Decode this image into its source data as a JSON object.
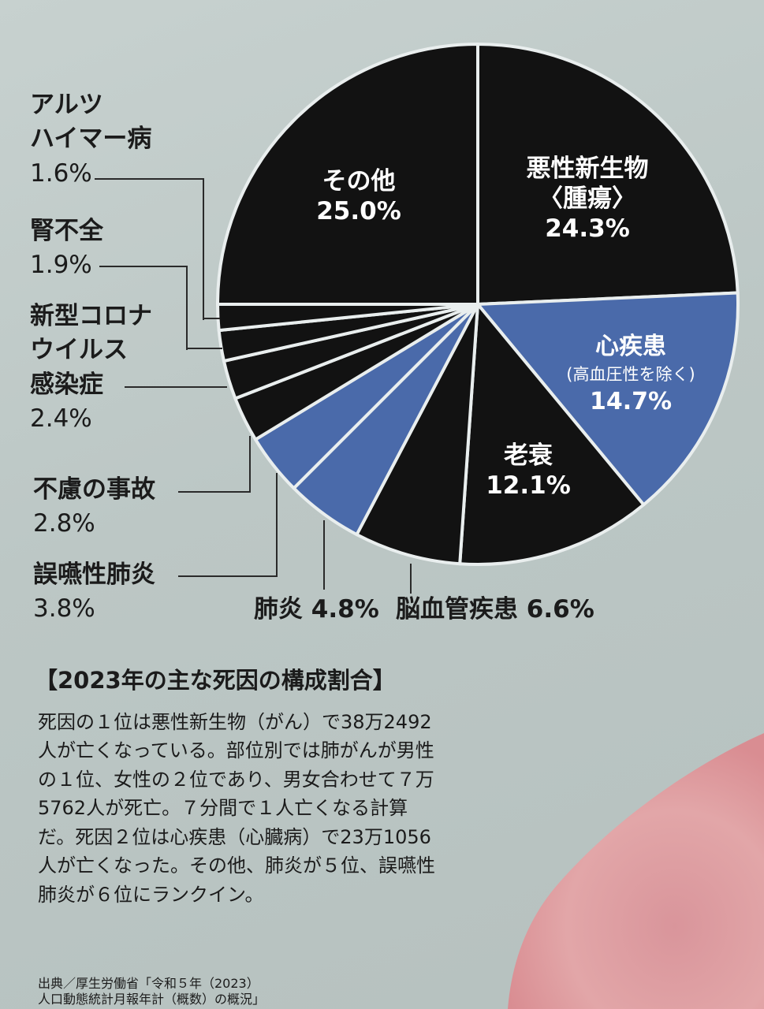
{
  "chart_data": {
    "type": "pie",
    "title": "【2023年の主な死因の構成割合】",
    "slices": [
      {
        "name": "悪性新生物〈腫瘍〉",
        "value": 24.3,
        "color": "#121212"
      },
      {
        "name": "心疾患(高血圧性を除く)",
        "value": 14.7,
        "color": "#4a6aaa"
      },
      {
        "name": "老衰",
        "value": 12.1,
        "color": "#121212"
      },
      {
        "name": "脳血管疾患",
        "value": 6.6,
        "color": "#121212"
      },
      {
        "name": "肺炎",
        "value": 4.8,
        "color": "#4a6aaa"
      },
      {
        "name": "誤嚥性肺炎",
        "value": 3.8,
        "color": "#4a6aaa"
      },
      {
        "name": "不慮の事故",
        "value": 2.8,
        "color": "#121212"
      },
      {
        "name": "新型コロナウイルス感染症",
        "value": 2.4,
        "color": "#121212"
      },
      {
        "name": "腎不全",
        "value": 1.9,
        "color": "#121212"
      },
      {
        "name": "アルツハイマー病",
        "value": 1.6,
        "color": "#121212"
      },
      {
        "name": "その他",
        "value": 25.0,
        "color": "#121212"
      }
    ]
  },
  "labels": {
    "malignant": {
      "line1": "悪性新生物",
      "line2": "〈腫瘍〉",
      "pct": "24.3%"
    },
    "heart": {
      "line1": "心疾患",
      "line2": "(高血圧性を除く)",
      "pct": "14.7%"
    },
    "senility": {
      "line1": "老衰",
      "pct": "12.1%"
    },
    "other": {
      "line1": "その他",
      "pct": "25.0%"
    },
    "alzheimer": {
      "line1": "アルツ",
      "line2": "ハイマー病",
      "pct": "1.6%"
    },
    "kidney": {
      "line1": "腎不全",
      "pct": "1.9%"
    },
    "covid": {
      "line1": "新型コロナ",
      "line2": "ウイルス",
      "line3": "感染症",
      "pct": "2.4%"
    },
    "accident": {
      "line1": "不慮の事故",
      "pct": "2.8%"
    },
    "aspiration": {
      "line1": "誤嚥性肺炎",
      "pct": "3.8%"
    },
    "pneumonia": {
      "text": "肺炎 4.8%"
    },
    "cerebro": {
      "text": "脳血管疾患 6.6%"
    }
  },
  "caption": {
    "title": "【2023年の主な死因の構成割合】",
    "body": "死因の１位は悪性新生物（がん）で38万2492人が亡くなっている。部位別では肺がんが男性の１位、女性の２位であり、男女合わせて７万5762人が死亡。７分間で１人亡くなる計算だ。死因２位は心疾患（心臓病）で23万1056人が亡くなった。その他、肺炎が５位、誤嚥性肺炎が６位にランクイン。",
    "source_line1": "出典／厚生労働省「令和５年（2023）",
    "source_line2": "人口動態統計月報年計（概数）の概況」"
  },
  "colors": {
    "dark": "#121212",
    "blue": "#4a6aaa",
    "background": "#c3ccca"
  }
}
